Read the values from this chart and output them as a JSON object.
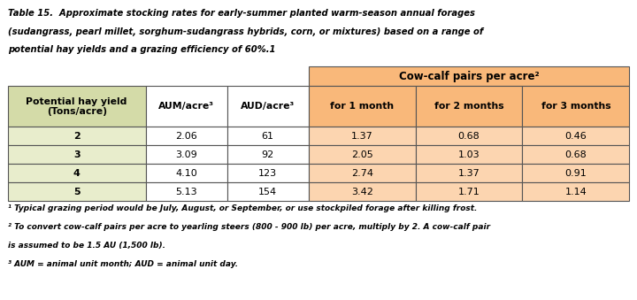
{
  "title_line1": "Table 15.  Approximate stocking rates for early-summer planted warm-season annual forages",
  "title_line2": "(sudangrass, pearl millet, sorghum-sudangrass hybrids, corn, or mixtures) based on a range of",
  "title_line3": "potential hay yields and a grazing efficiency of 60%.",
  "title_sup": "1",
  "group_header": "Cow-calf pairs per acre²",
  "col_headers": [
    "Potential hay yield\n(Tons/acre)",
    "AUM/acre³",
    "AUD/acre³",
    "for 1 month",
    "for 2 months",
    "for 3 months"
  ],
  "rows": [
    [
      "2",
      "2.06",
      "61",
      "1.37",
      "0.68",
      "0.46"
    ],
    [
      "3",
      "3.09",
      "92",
      "2.05",
      "1.03",
      "0.68"
    ],
    [
      "4",
      "4.10",
      "123",
      "2.74",
      "1.37",
      "0.91"
    ],
    [
      "5",
      "5.13",
      "154",
      "3.42",
      "1.71",
      "1.14"
    ]
  ],
  "footnotes": [
    "¹ Typical grazing period would be July, August, or September, or use stockpiled forage after killing frost.",
    "² To convert cow-calf pairs per acre to yearling steers (800 - 900 lb) per acre, multiply by 2. A cow-calf pair",
    "is assumed to be 1.5 AU (1,500 lb).",
    "³ AUM = animal unit month; AUD = animal unit day."
  ],
  "green_bg": "#e8edcc",
  "green_hdr_bg": "#d4dba8",
  "salmon_bg": "#fcd5b0",
  "salmon_hdr_bg": "#f9b87a",
  "white_bg": "#ffffff",
  "border_color": "#555555",
  "fig_width": 7.2,
  "fig_height": 3.39,
  "dpi": 100
}
